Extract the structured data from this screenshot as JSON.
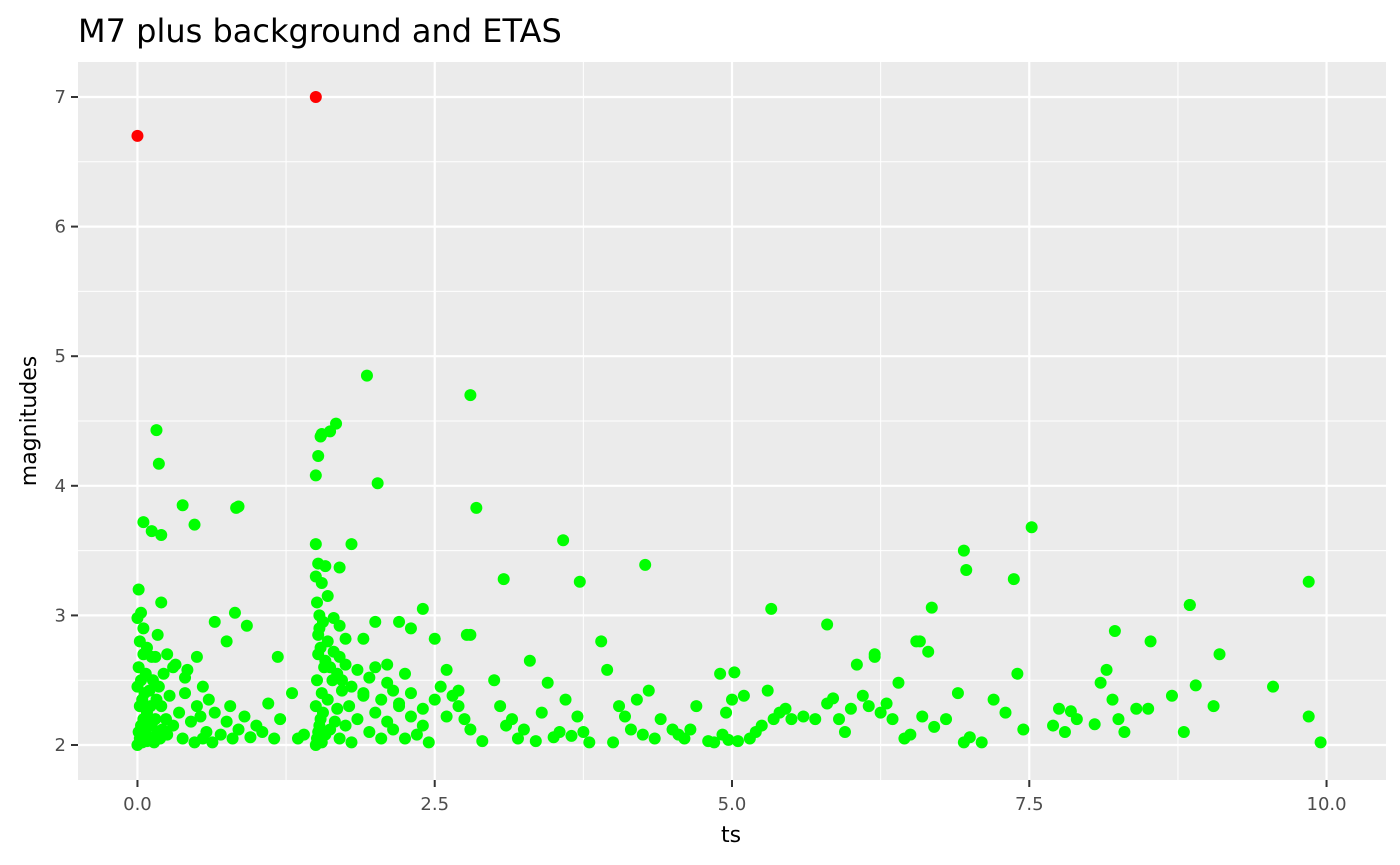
{
  "chart_data": {
    "type": "scatter",
    "title": "M7 plus background and ETAS",
    "xlabel": "ts",
    "ylabel": "magnitudes",
    "xlim": [
      -0.5,
      10.5
    ],
    "ylim": [
      1.73,
      7.27
    ],
    "x_ticks": [
      0,
      2.5,
      5,
      7.5,
      10
    ],
    "x_tick_labels": [
      "0.0",
      "2.5",
      "5.0",
      "7.5",
      "10.0"
    ],
    "y_ticks": [
      2,
      3,
      4,
      5,
      6,
      7
    ],
    "y_tick_labels": [
      "2",
      "3",
      "4",
      "5",
      "6",
      "7"
    ],
    "grid": true,
    "legend": "none",
    "colors": {
      "panel_background": "#ebebeb",
      "grid": "#ffffff",
      "mainshock": "#ff0000",
      "aftershock": "#00ff00"
    },
    "series": [
      {
        "color": "#ff0000",
        "x": [
          0.0,
          1.5
        ],
        "y": [
          6.7,
          7.0
        ]
      },
      {
        "color": "#00ff00",
        "x": [
          0.0,
          0.0,
          0.01,
          0.01,
          0.02,
          0.02,
          0.03,
          0.03,
          0.04,
          0.04,
          0.05,
          0.05,
          0.06,
          0.06,
          0.07,
          0.07,
          0.08,
          0.08,
          0.09,
          0.1,
          0.1,
          0.11,
          0.12,
          0.13,
          0.14,
          0.15,
          0.15,
          0.16,
          0.17,
          0.18,
          0.19,
          0.2,
          0.21,
          0.22,
          0.24,
          0.25,
          0.27,
          0.3,
          0.32,
          0.35,
          0.38,
          0.4,
          0.42,
          0.45,
          0.48,
          0.5,
          0.53,
          0.55,
          0.58,
          0.6,
          0.63,
          0.65,
          0.7,
          0.75,
          0.78,
          0.8,
          0.85,
          0.9,
          0.95,
          1.0,
          1.05,
          1.1,
          1.15,
          1.2,
          1.3,
          1.35,
          1.4,
          0.0,
          0.01,
          0.02,
          0.03,
          0.05,
          0.08,
          0.12,
          0.17,
          0.2,
          0.25,
          0.3,
          0.4,
          0.5,
          0.55,
          0.65,
          0.75,
          0.82,
          0.92,
          1.18,
          1.5,
          1.5,
          1.51,
          1.51,
          1.52,
          1.52,
          1.53,
          1.53,
          1.54,
          1.55,
          1.55,
          1.56,
          1.57,
          1.58,
          1.6,
          1.62,
          1.64,
          1.66,
          1.68,
          1.7,
          1.72,
          1.75,
          1.78,
          1.8,
          1.85,
          1.9,
          1.95,
          2.0,
          2.05,
          2.1,
          2.15,
          2.2,
          2.25,
          2.3,
          2.35,
          2.4,
          2.45,
          1.5,
          1.51,
          1.52,
          1.53,
          1.54,
          1.56,
          1.58,
          1.6,
          1.62,
          1.65,
          1.68,
          1.7,
          1.72,
          1.75,
          1.8,
          1.85,
          1.9,
          1.95,
          2.0,
          2.05,
          2.1,
          2.15,
          2.2,
          2.25,
          2.3,
          2.4,
          2.5,
          2.55,
          2.6,
          2.65,
          2.7,
          2.75,
          2.8,
          1.5,
          1.52,
          1.55,
          1.58,
          1.6,
          1.65,
          1.7,
          1.75,
          1.8,
          1.9,
          2.0,
          2.1,
          2.2,
          2.3,
          2.4,
          2.5,
          2.6,
          2.7,
          2.8,
          2.9,
          3.0,
          3.05,
          3.1,
          3.15,
          3.2,
          3.25,
          3.3,
          3.35,
          3.4,
          3.45,
          3.5,
          3.55,
          3.6,
          3.65,
          3.7,
          3.75,
          3.8,
          3.9,
          3.95,
          4.0,
          4.05,
          4.1,
          4.15,
          4.2,
          4.25,
          4.3,
          4.35,
          4.4,
          4.5,
          4.55,
          4.6,
          4.65,
          4.7,
          4.8,
          4.85,
          4.9,
          4.92,
          4.95,
          4.97,
          5.0,
          5.02,
          5.05,
          5.1,
          5.15,
          5.2,
          5.25,
          5.3,
          5.35,
          5.4,
          5.45,
          5.5,
          5.6,
          5.7,
          5.8,
          5.85,
          5.9,
          5.95,
          6.0,
          6.05,
          6.1,
          6.15,
          6.2,
          6.25,
          6.3,
          6.35,
          6.4,
          6.45,
          6.5,
          6.55,
          6.6,
          6.65,
          6.7,
          6.8,
          6.9,
          6.95,
          7.0,
          7.1,
          7.2,
          7.3,
          7.4,
          7.45,
          7.7,
          7.75,
          7.8,
          7.85,
          7.9,
          8.05,
          8.1,
          8.15,
          8.2,
          8.25,
          8.3,
          8.4,
          8.5,
          8.7,
          8.8,
          8.85,
          8.9,
          9.05,
          9.1,
          9.55,
          9.85,
          9.95,
          0.05,
          0.12,
          0.16,
          0.18,
          0.2,
          0.38,
          0.48,
          0.83,
          0.85,
          1.5,
          1.52,
          1.54,
          1.55,
          1.62,
          1.67,
          1.7,
          1.93,
          2.02,
          2.8,
          2.85,
          2.77,
          3.08,
          3.58,
          3.72,
          4.27,
          5.33,
          5.8,
          6.2,
          6.58,
          6.68,
          6.95,
          6.97,
          7.37,
          7.52,
          8.22,
          8.52,
          8.85,
          9.85
        ],
        "y": [
          2.0,
          2.45,
          2.1,
          2.6,
          2.05,
          2.3,
          2.15,
          2.5,
          2.02,
          2.35,
          2.2,
          2.7,
          2.08,
          2.4,
          2.12,
          2.55,
          2.03,
          2.25,
          2.18,
          2.06,
          2.42,
          2.3,
          2.15,
          2.5,
          2.02,
          2.2,
          2.68,
          2.35,
          2.1,
          2.45,
          2.05,
          2.3,
          2.12,
          2.55,
          2.2,
          2.08,
          2.38,
          2.15,
          2.62,
          2.25,
          2.05,
          2.4,
          2.58,
          2.18,
          2.02,
          2.3,
          2.22,
          2.05,
          2.1,
          2.35,
          2.02,
          2.25,
          2.08,
          2.18,
          2.3,
          2.05,
          2.12,
          2.22,
          2.06,
          2.15,
          2.1,
          2.32,
          2.05,
          2.2,
          2.4,
          2.05,
          2.08,
          2.98,
          3.2,
          2.8,
          3.02,
          2.9,
          2.75,
          2.68,
          2.85,
          3.1,
          2.7,
          2.6,
          2.52,
          2.68,
          2.45,
          2.95,
          2.8,
          3.02,
          2.92,
          2.68,
          2.0,
          2.3,
          2.05,
          2.5,
          2.1,
          2.7,
          2.15,
          2.9,
          2.2,
          2.02,
          2.4,
          2.25,
          2.6,
          2.08,
          2.35,
          2.12,
          2.5,
          2.18,
          2.28,
          2.05,
          2.42,
          2.15,
          2.3,
          2.02,
          2.2,
          2.38,
          2.1,
          2.25,
          2.05,
          2.18,
          2.12,
          2.32,
          2.05,
          2.22,
          2.08,
          2.15,
          2.02,
          3.3,
          3.1,
          2.85,
          3.0,
          2.75,
          2.95,
          2.65,
          2.8,
          2.6,
          2.72,
          2.55,
          2.68,
          2.5,
          2.62,
          2.45,
          2.58,
          2.4,
          2.52,
          2.6,
          2.35,
          2.48,
          2.42,
          2.3,
          2.55,
          2.4,
          2.28,
          2.35,
          2.45,
          2.22,
          2.38,
          2.3,
          2.2,
          2.12,
          3.55,
          3.4,
          3.25,
          3.38,
          3.15,
          2.98,
          2.92,
          2.82,
          3.55,
          2.82,
          2.95,
          2.62,
          2.95,
          2.9,
          3.05,
          2.82,
          2.58,
          2.42,
          2.85,
          2.03,
          2.5,
          2.3,
          2.15,
          2.2,
          2.05,
          2.12,
          2.65,
          2.03,
          2.25,
          2.48,
          2.06,
          2.1,
          2.35,
          2.07,
          2.22,
          2.1,
          2.02,
          2.8,
          2.58,
          2.02,
          2.3,
          2.22,
          2.12,
          2.35,
          2.08,
          2.42,
          2.05,
          2.2,
          2.12,
          2.08,
          2.05,
          2.12,
          2.3,
          2.03,
          2.02,
          2.55,
          2.08,
          2.25,
          2.04,
          2.35,
          2.56,
          2.03,
          2.38,
          2.05,
          2.1,
          2.15,
          2.42,
          2.2,
          2.25,
          2.28,
          2.2,
          2.22,
          2.2,
          2.32,
          2.36,
          2.2,
          2.1,
          2.28,
          2.62,
          2.38,
          2.3,
          2.68,
          2.25,
          2.32,
          2.2,
          2.48,
          2.05,
          2.08,
          2.8,
          2.22,
          2.72,
          2.14,
          2.2,
          2.4,
          2.02,
          2.06,
          2.02,
          2.35,
          2.25,
          2.55,
          2.12,
          2.15,
          2.28,
          2.1,
          2.26,
          2.2,
          2.16,
          2.48,
          2.58,
          2.35,
          2.2,
          2.1,
          2.28,
          2.28,
          2.38,
          2.1,
          3.08,
          2.46,
          2.3,
          2.7,
          2.45,
          2.22,
          2.02,
          3.72,
          3.65,
          4.43,
          4.17,
          3.62,
          3.85,
          3.7,
          3.83,
          3.84,
          4.08,
          4.23,
          4.38,
          4.4,
          4.42,
          4.48,
          3.37,
          4.85,
          4.02,
          4.7,
          3.83,
          2.85,
          3.28,
          3.58,
          3.26,
          3.39,
          3.05,
          2.93,
          2.7,
          2.8,
          3.06,
          3.5,
          3.35,
          3.28,
          3.68,
          2.88,
          2.8,
          3.08,
          3.26
        ]
      }
    ]
  }
}
